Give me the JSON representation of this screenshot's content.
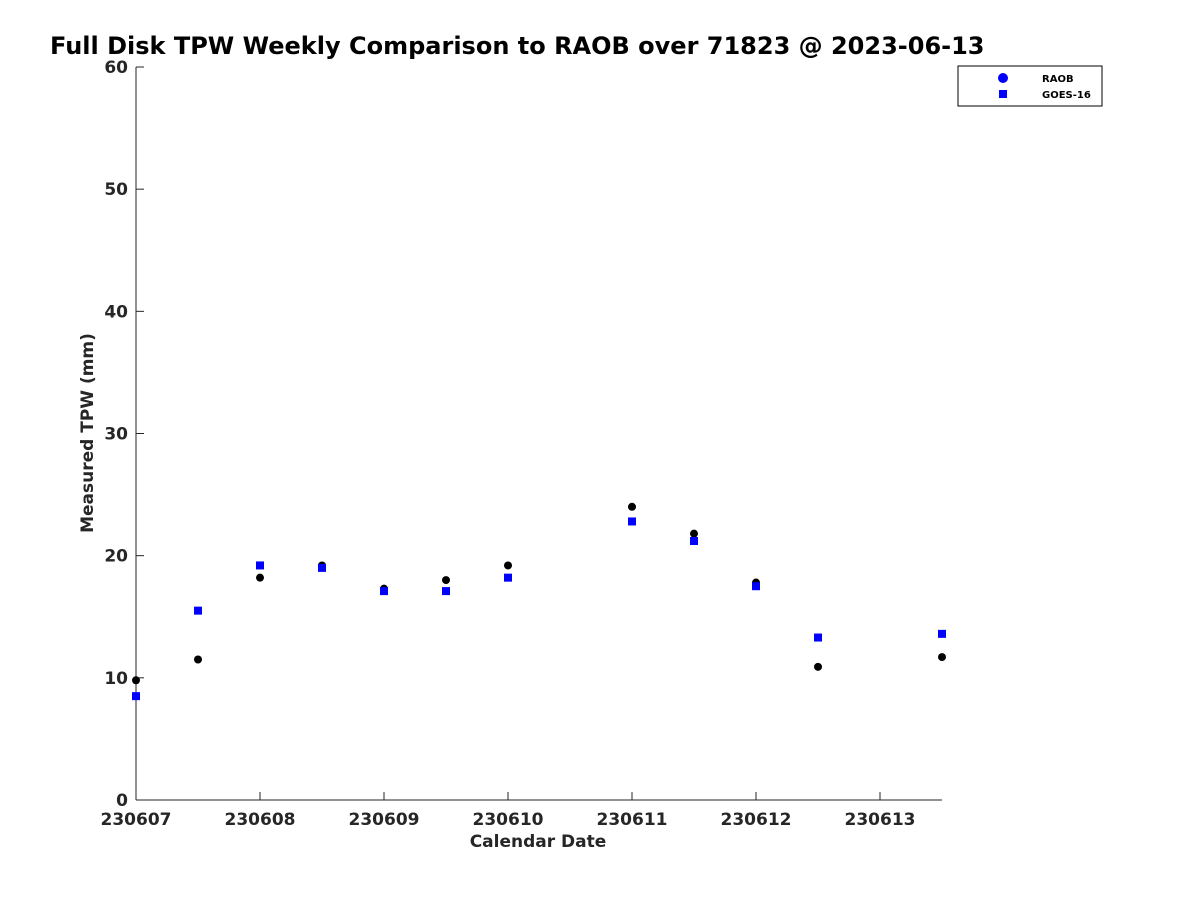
{
  "chart_data": {
    "type": "scatter",
    "title": "Full Disk TPW Weekly Comparison to RAOB over 71823 @ 2023-06-13",
    "xlabel": "Calendar Date",
    "ylabel": "Measured TPW (mm)",
    "x_range": [
      230607.0,
      230613.5
    ],
    "ylim": [
      0,
      60
    ],
    "x_ticks": [
      230607,
      230608,
      230609,
      230610,
      230611,
      230612,
      230613
    ],
    "x_tick_labels": [
      "230607",
      "230608",
      "230609",
      "230610",
      "230611",
      "230612",
      "230613"
    ],
    "y_ticks": [
      0,
      10,
      20,
      30,
      40,
      50,
      60
    ],
    "y_tick_labels": [
      "0",
      "10",
      "20",
      "30",
      "40",
      "50",
      "60"
    ],
    "grid": false,
    "legend": {
      "placement": "top-right",
      "entries": [
        "RAOB",
        "GOES-16"
      ]
    },
    "series": [
      {
        "name": "RAOB",
        "marker": "circle",
        "legend_color": "#0000ff",
        "color": "#000000",
        "x": [
          230607.0,
          230607.5,
          230608.0,
          230608.5,
          230609.0,
          230609.5,
          230610.0,
          230611.0,
          230611.5,
          230612.0,
          230612.5,
          230613.5
        ],
        "y": [
          9.8,
          11.5,
          18.2,
          19.2,
          17.3,
          18.0,
          19.2,
          24.0,
          21.8,
          17.8,
          10.9,
          11.7
        ]
      },
      {
        "name": "GOES-16",
        "marker": "square",
        "legend_color": "#0000ff",
        "color": "#0000ff",
        "x": [
          230607.0,
          230607.5,
          230608.0,
          230608.5,
          230609.0,
          230609.5,
          230610.0,
          230611.0,
          230611.5,
          230612.0,
          230612.5,
          230613.5
        ],
        "y": [
          8.5,
          15.5,
          19.2,
          19.0,
          17.1,
          17.1,
          18.2,
          22.8,
          21.2,
          17.5,
          13.3,
          13.6
        ]
      }
    ]
  }
}
